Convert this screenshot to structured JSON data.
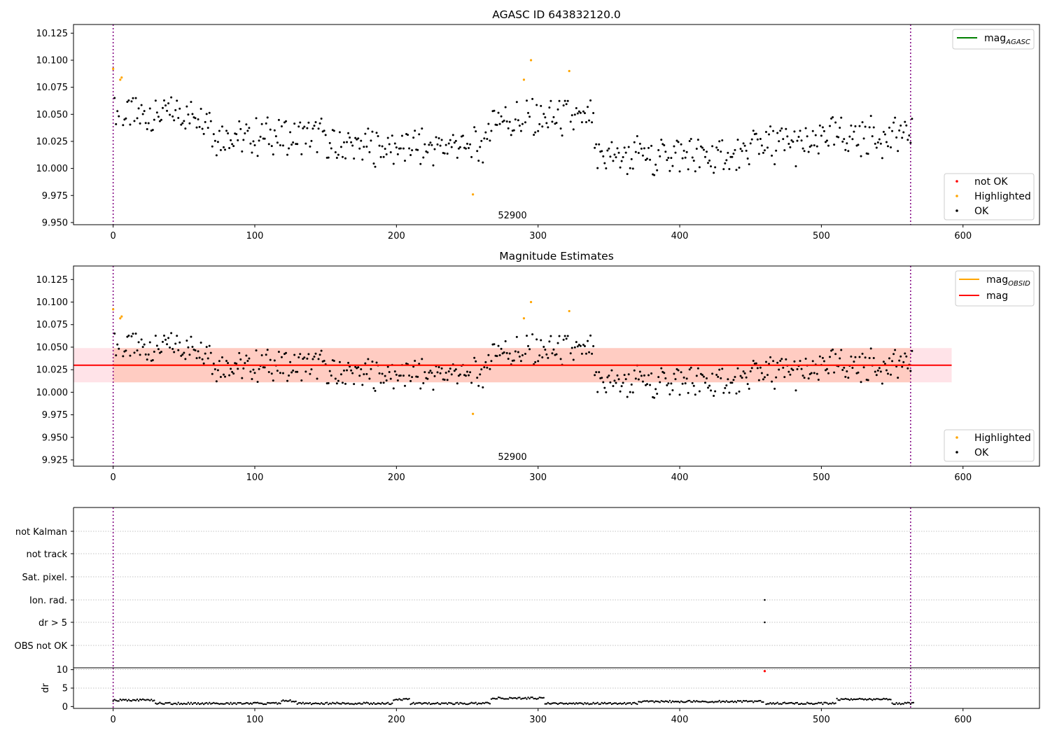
{
  "chart_data": [
    {
      "type": "scatter",
      "title": "AGASC ID 643832120.0",
      "xlim": [
        -28,
        654
      ],
      "ylim": [
        9.948,
        10.133
      ],
      "xticks": [
        0,
        100,
        200,
        300,
        400,
        500,
        600
      ],
      "yticks": [
        9.95,
        9.975,
        10.0,
        10.025,
        10.05,
        10.075,
        10.1,
        10.125
      ],
      "ytick_labels": [
        "9.950",
        "9.975",
        "10.000",
        "10.025",
        "10.050",
        "10.075",
        "10.100",
        "10.125"
      ],
      "vlines": [
        0,
        563
      ],
      "annotation": "52900",
      "legend_top": [
        {
          "label": "mag",
          "subscript": "AGASC",
          "color": "#008000",
          "kind": "line"
        }
      ],
      "legend_bottom": [
        {
          "label": "not OK",
          "color": "#ff0000",
          "kind": "point"
        },
        {
          "label": "Highlighted",
          "color": "#ffa500",
          "kind": "point"
        },
        {
          "label": "OK",
          "color": "#000000",
          "kind": "point"
        }
      ],
      "series": [
        {
          "name": "not OK",
          "color": "#ff0000",
          "x": [],
          "y": []
        },
        {
          "name": "Highlighted",
          "color": "#ffa500",
          "x": [
            0,
            5,
            6,
            254,
            290,
            295,
            322
          ],
          "y": [
            10.092,
            10.082,
            10.084,
            9.976,
            10.082,
            10.1,
            10.09
          ]
        },
        {
          "name": "OK",
          "color": "#000000",
          "x": [],
          "y": []
        }
      ]
    },
    {
      "type": "scatter",
      "title": "Magnitude Estimates",
      "xlim": [
        -28,
        654
      ],
      "ylim": [
        9.918,
        10.14
      ],
      "xticks": [
        0,
        100,
        200,
        300,
        400,
        500,
        600
      ],
      "yticks": [
        9.925,
        9.95,
        9.975,
        10.0,
        10.025,
        10.05,
        10.075,
        10.1,
        10.125
      ],
      "ytick_labels": [
        "9.925",
        "9.950",
        "9.975",
        "10.000",
        "10.025",
        "10.050",
        "10.075",
        "10.100",
        "10.125"
      ],
      "vlines": [
        0,
        563
      ],
      "annotation": "52900",
      "mag_line": {
        "value": 10.03,
        "x_range": [
          -28,
          592
        ],
        "color": "#ff0000"
      },
      "mag_obsid_line": {
        "value": 10.03,
        "x_range": [
          0,
          563
        ],
        "color": "#ffa500"
      },
      "band_outer": {
        "low": 10.011,
        "high": 10.049,
        "x_range": [
          -28,
          592
        ],
        "color": "#ffc0cb"
      },
      "band_inner": {
        "low": 10.011,
        "high": 10.049,
        "x_range": [
          0,
          563
        ],
        "color": "#ffa07a"
      },
      "legend_top": [
        {
          "label": "mag",
          "subscript": "OBSID",
          "color": "#ffa500",
          "kind": "line"
        },
        {
          "label": "mag",
          "subscript": "",
          "color": "#ff0000",
          "kind": "line"
        }
      ],
      "legend_bottom": [
        {
          "label": "Highlighted",
          "color": "#ffa500",
          "kind": "point"
        },
        {
          "label": "OK",
          "color": "#000000",
          "kind": "point"
        }
      ]
    },
    {
      "type": "scatter",
      "title": "",
      "xlim": [
        -28,
        654
      ],
      "categories": [
        "not Kalman",
        "not track",
        "Sat. pixel.",
        "Ion. rad.",
        "dr > 5",
        "OBS not OK"
      ],
      "vlines": [
        0,
        563
      ],
      "flag_points": [
        {
          "category": "Ion. rad.",
          "x": 460
        },
        {
          "category": "dr > 5",
          "x": 460
        }
      ]
    },
    {
      "type": "scatter",
      "title": "",
      "ylabel": "dr",
      "xlim": [
        -28,
        654
      ],
      "ylim": [
        -0.5,
        10.5
      ],
      "xticks": [
        0,
        100,
        200,
        300,
        400,
        500,
        600
      ],
      "yticks": [
        0,
        5,
        10
      ],
      "vlines": [
        0,
        563
      ],
      "outlier": {
        "x": 460,
        "y": 9.6,
        "color": "#ff0000"
      }
    }
  ],
  "colors": {
    "highlighted": "#ffa500",
    "not_ok": "#ff0000",
    "ok": "#000000",
    "vline": "#800080",
    "grid": "#b0b0b0"
  }
}
